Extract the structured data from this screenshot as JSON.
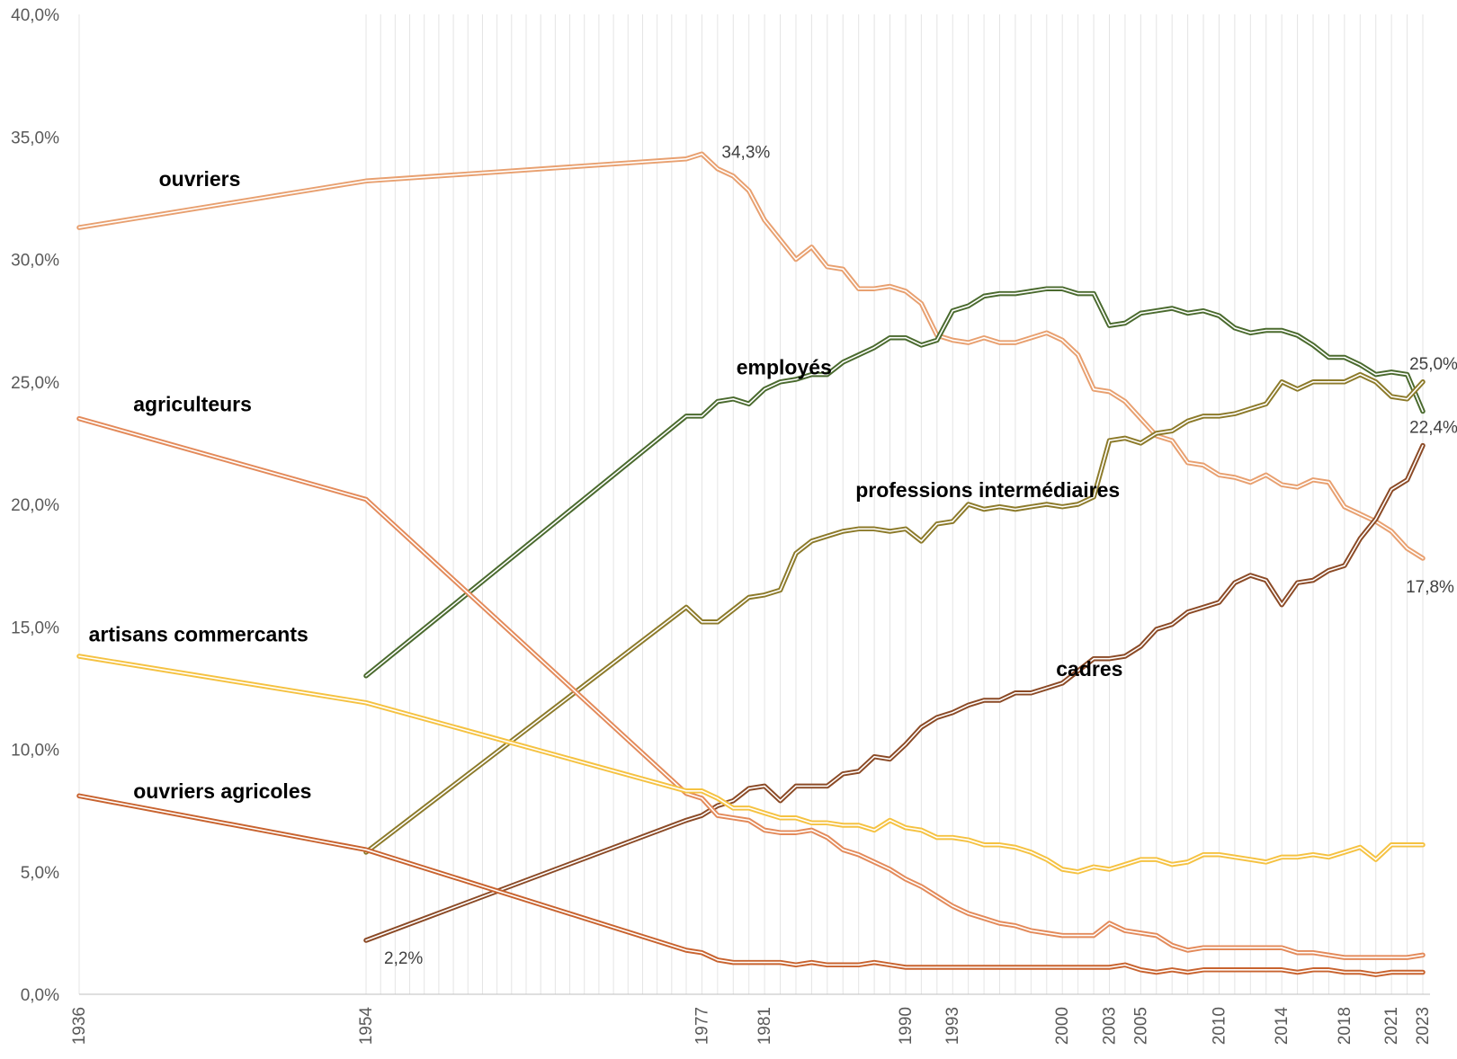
{
  "chart_data": {
    "type": "line",
    "title": "",
    "xlabel": "",
    "ylabel": "",
    "ylim": [
      0,
      40
    ],
    "y_ticks": [
      "0,0%",
      "5,0%",
      "10,0%",
      "15,0%",
      "20,0%",
      "25,0%",
      "30,0%",
      "35,0%",
      "40,0%"
    ],
    "x_tick_labels": [
      "1936",
      "1954",
      "1977",
      "1981",
      "1990",
      "1993",
      "2000",
      "2003",
      "2005",
      "2010",
      "2014",
      "2018",
      "2021",
      "2023"
    ],
    "gridlines": "vertical, one per year from 1977",
    "series": [
      {
        "name": "ouvriers",
        "color": "#E8A070",
        "x": [
          1936,
          1954,
          1976,
          1977,
          1978,
          1979,
          1980,
          1981,
          1982,
          1983,
          1984,
          1985,
          1986,
          1987,
          1988,
          1989,
          1990,
          1991,
          1992,
          1993,
          1994,
          1995,
          1996,
          1997,
          1998,
          1999,
          2000,
          2001,
          2002,
          2003,
          2004,
          2005,
          2006,
          2007,
          2008,
          2009,
          2010,
          2011,
          2012,
          2013,
          2014,
          2015,
          2016,
          2017,
          2018,
          2019,
          2020,
          2021,
          2022,
          2023
        ],
        "values": [
          31.3,
          33.2,
          34.1,
          34.3,
          33.7,
          33.4,
          32.8,
          31.6,
          30.8,
          30.0,
          30.5,
          29.7,
          29.6,
          28.8,
          28.8,
          28.9,
          28.7,
          28.2,
          26.9,
          26.7,
          26.6,
          26.8,
          26.6,
          26.6,
          26.8,
          27.0,
          26.7,
          26.1,
          24.7,
          24.6,
          24.2,
          23.5,
          22.8,
          22.6,
          21.7,
          21.6,
          21.2,
          21.1,
          20.9,
          21.2,
          20.8,
          20.7,
          21.0,
          20.9,
          19.9,
          19.6,
          19.3,
          18.9,
          18.2,
          17.8
        ]
      },
      {
        "name": "employés",
        "color": "#4A6A2E",
        "x": [
          1954,
          1976,
          1977,
          1978,
          1979,
          1980,
          1981,
          1982,
          1983,
          1984,
          1985,
          1986,
          1987,
          1988,
          1989,
          1990,
          1991,
          1992,
          1993,
          1994,
          1995,
          1996,
          1997,
          1998,
          1999,
          2000,
          2001,
          2002,
          2003,
          2004,
          2005,
          2006,
          2007,
          2008,
          2009,
          2010,
          2011,
          2012,
          2013,
          2014,
          2015,
          2016,
          2017,
          2018,
          2019,
          2020,
          2021,
          2022,
          2023
        ],
        "values": [
          13.0,
          23.6,
          23.6,
          24.2,
          24.3,
          24.1,
          24.7,
          25.0,
          25.1,
          25.3,
          25.3,
          25.8,
          26.1,
          26.4,
          26.8,
          26.8,
          26.5,
          26.7,
          27.9,
          28.1,
          28.5,
          28.6,
          28.6,
          28.7,
          28.8,
          28.8,
          28.6,
          28.6,
          27.3,
          27.4,
          27.8,
          27.9,
          28.0,
          27.8,
          27.9,
          27.7,
          27.2,
          27.0,
          27.1,
          27.1,
          26.9,
          26.5,
          26.0,
          26.0,
          25.7,
          25.3,
          25.4,
          25.3,
          23.8
        ]
      },
      {
        "name": "professions intermédiaires",
        "color": "#8C7A2A",
        "x": [
          1954,
          1976,
          1977,
          1978,
          1979,
          1980,
          1981,
          1982,
          1983,
          1984,
          1985,
          1986,
          1987,
          1988,
          1989,
          1990,
          1991,
          1992,
          1993,
          1994,
          1995,
          1996,
          1997,
          1998,
          1999,
          2000,
          2001,
          2002,
          2003,
          2004,
          2005,
          2006,
          2007,
          2008,
          2009,
          2010,
          2011,
          2012,
          2013,
          2014,
          2015,
          2016,
          2017,
          2018,
          2019,
          2020,
          2021,
          2022,
          2023
        ],
        "values": [
          5.8,
          15.8,
          15.2,
          15.2,
          15.7,
          16.2,
          16.3,
          16.5,
          18.0,
          18.5,
          18.7,
          18.9,
          19.0,
          19.0,
          18.9,
          19.0,
          18.5,
          19.2,
          19.3,
          20.0,
          19.8,
          19.9,
          19.8,
          19.9,
          20.0,
          19.9,
          20.0,
          20.3,
          22.6,
          22.7,
          22.5,
          22.9,
          23.0,
          23.4,
          23.6,
          23.6,
          23.7,
          23.9,
          24.1,
          25.0,
          24.7,
          25.0,
          25.0,
          25.0,
          25.3,
          25.0,
          24.4,
          24.3,
          25.0
        ]
      },
      {
        "name": "cadres",
        "color": "#8B4A26",
        "x": [
          1954,
          1976,
          1977,
          1978,
          1979,
          1980,
          1981,
          1982,
          1983,
          1984,
          1985,
          1986,
          1987,
          1988,
          1989,
          1990,
          1991,
          1992,
          1993,
          1994,
          1995,
          1996,
          1997,
          1998,
          1999,
          2000,
          2001,
          2002,
          2003,
          2004,
          2005,
          2006,
          2007,
          2008,
          2009,
          2010,
          2011,
          2012,
          2013,
          2014,
          2015,
          2016,
          2017,
          2018,
          2019,
          2020,
          2021,
          2022,
          2023
        ],
        "values": [
          2.2,
          7.1,
          7.3,
          7.7,
          7.9,
          8.4,
          8.5,
          7.9,
          8.5,
          8.5,
          8.5,
          9.0,
          9.1,
          9.7,
          9.6,
          10.2,
          10.9,
          11.3,
          11.5,
          11.8,
          12.0,
          12.0,
          12.3,
          12.3,
          12.5,
          12.7,
          13.2,
          13.7,
          13.7,
          13.8,
          14.2,
          14.9,
          15.1,
          15.6,
          15.8,
          16.0,
          16.8,
          17.1,
          16.9,
          15.9,
          16.8,
          16.9,
          17.3,
          17.5,
          18.6,
          19.4,
          20.6,
          21.0,
          22.4
        ]
      },
      {
        "name": "agriculteurs",
        "color": "#E38A5A",
        "x": [
          1936,
          1954,
          1976,
          1977,
          1978,
          1979,
          1980,
          1981,
          1982,
          1983,
          1984,
          1985,
          1986,
          1987,
          1988,
          1989,
          1990,
          1991,
          1992,
          1993,
          1994,
          1995,
          1996,
          1997,
          1998,
          1999,
          2000,
          2001,
          2002,
          2003,
          2004,
          2005,
          2006,
          2007,
          2008,
          2009,
          2010,
          2011,
          2012,
          2013,
          2014,
          2015,
          2016,
          2017,
          2018,
          2019,
          2020,
          2021,
          2022,
          2023
        ],
        "values": [
          23.5,
          20.2,
          8.2,
          8.0,
          7.3,
          7.2,
          7.1,
          6.7,
          6.6,
          6.6,
          6.7,
          6.4,
          5.9,
          5.7,
          5.4,
          5.1,
          4.7,
          4.4,
          4.0,
          3.6,
          3.3,
          3.1,
          2.9,
          2.8,
          2.6,
          2.5,
          2.4,
          2.4,
          2.4,
          2.9,
          2.6,
          2.5,
          2.4,
          2.0,
          1.8,
          1.9,
          1.9,
          1.9,
          1.9,
          1.9,
          1.9,
          1.7,
          1.7,
          1.6,
          1.5,
          1.5,
          1.5,
          1.5,
          1.5,
          1.6
        ]
      },
      {
        "name": "artisans commercants",
        "color": "#F5C242",
        "x": [
          1936,
          1954,
          1976,
          1977,
          1978,
          1979,
          1980,
          1981,
          1982,
          1983,
          1984,
          1985,
          1986,
          1987,
          1988,
          1989,
          1990,
          1991,
          1992,
          1993,
          1994,
          1995,
          1996,
          1997,
          1998,
          1999,
          2000,
          2001,
          2002,
          2003,
          2004,
          2005,
          2006,
          2007,
          2008,
          2009,
          2010,
          2011,
          2012,
          2013,
          2014,
          2015,
          2016,
          2017,
          2018,
          2019,
          2020,
          2021,
          2022,
          2023
        ],
        "values": [
          13.8,
          11.9,
          8.3,
          8.3,
          8.0,
          7.6,
          7.6,
          7.4,
          7.2,
          7.2,
          7.0,
          7.0,
          6.9,
          6.9,
          6.7,
          7.1,
          6.8,
          6.7,
          6.4,
          6.4,
          6.3,
          6.1,
          6.1,
          6.0,
          5.8,
          5.5,
          5.1,
          5.0,
          5.2,
          5.1,
          5.3,
          5.5,
          5.5,
          5.3,
          5.4,
          5.7,
          5.7,
          5.6,
          5.5,
          5.4,
          5.6,
          5.6,
          5.7,
          5.6,
          5.8,
          6.0,
          5.5,
          6.1,
          6.1,
          6.1
        ]
      },
      {
        "name": "ouvriers agricoles",
        "color": "#C8632F",
        "x": [
          1936,
          1954,
          1976,
          1977,
          1978,
          1979,
          1980,
          1981,
          1982,
          1983,
          1984,
          1985,
          1986,
          1987,
          1988,
          1989,
          1990,
          1991,
          1992,
          1993,
          1994,
          1995,
          1996,
          1997,
          1998,
          1999,
          2000,
          2001,
          2002,
          2003,
          2004,
          2005,
          2006,
          2007,
          2008,
          2009,
          2010,
          2011,
          2012,
          2013,
          2014,
          2015,
          2016,
          2017,
          2018,
          2019,
          2020,
          2021,
          2022,
          2023
        ],
        "values": [
          8.1,
          5.9,
          1.8,
          1.7,
          1.4,
          1.3,
          1.3,
          1.3,
          1.3,
          1.2,
          1.3,
          1.2,
          1.2,
          1.2,
          1.3,
          1.2,
          1.1,
          1.1,
          1.1,
          1.1,
          1.1,
          1.1,
          1.1,
          1.1,
          1.1,
          1.1,
          1.1,
          1.1,
          1.1,
          1.1,
          1.2,
          1.0,
          0.9,
          1.0,
          0.9,
          1.0,
          1.0,
          1.0,
          1.0,
          1.0,
          1.0,
          0.9,
          1.0,
          1.0,
          0.9,
          0.9,
          0.8,
          0.9,
          0.9,
          0.9
        ]
      }
    ],
    "series_labels": [
      {
        "text": "ouvriers",
        "series": "ouvriers",
        "anchor_x": 1941,
        "anchor_y": 33.0
      },
      {
        "text": "employés",
        "series": "employés",
        "anchor_x": 1979.2,
        "anchor_y": 25.3
      },
      {
        "text": "professions intermédiaires",
        "series": "professions intermédiaires",
        "anchor_x": 1986.8,
        "anchor_y": 20.3
      },
      {
        "text": "cadres",
        "series": "cadres",
        "anchor_x": 1999.6,
        "anchor_y": 13.0
      },
      {
        "text": "agriculteurs",
        "series": "agriculteurs",
        "anchor_x": 1939.4,
        "anchor_y": 23.8
      },
      {
        "text": "artisans commercants",
        "series": "artisans commercants",
        "anchor_x": 1936.6,
        "anchor_y": 14.4
      },
      {
        "text": "ouvriers agricoles",
        "series": "ouvriers agricoles",
        "anchor_x": 1939.4,
        "anchor_y": 8.0
      }
    ],
    "data_labels": [
      {
        "text": "34,3%",
        "series": "ouvriers",
        "x": 1977,
        "y": 34.3,
        "pos": "right"
      },
      {
        "text": "2,2%",
        "series": "cadres",
        "x": 1954,
        "y": 2.2,
        "pos": "below-right"
      },
      {
        "text": "25,0%",
        "series": "professions intermédiaires",
        "x": 2023,
        "y": 25.0,
        "pos": "above"
      },
      {
        "text": "22,4%",
        "series": "cadres",
        "x": 2023,
        "y": 22.4,
        "pos": "above"
      },
      {
        "text": "17,8%",
        "series": "ouvriers",
        "x": 2023,
        "y": 17.8,
        "pos": "below"
      }
    ]
  }
}
